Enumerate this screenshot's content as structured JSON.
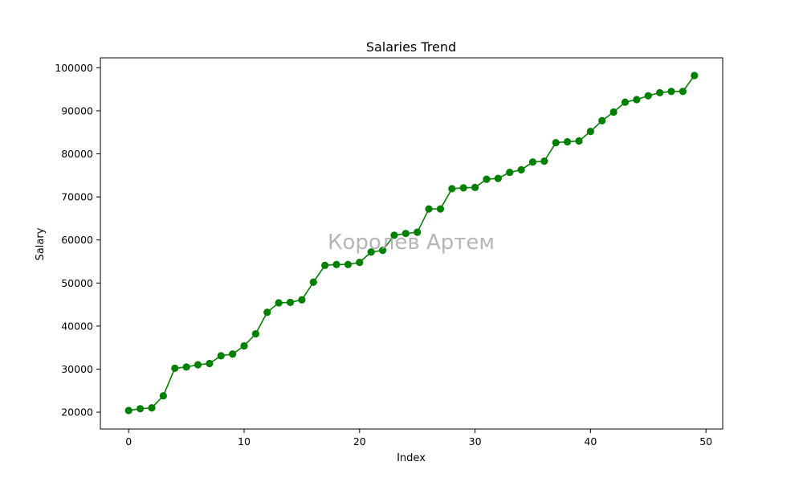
{
  "chart_data": {
    "type": "line",
    "title": "Salaries Trend",
    "xlabel": "Index",
    "ylabel": "Salary",
    "xlim": [
      -2.45,
      51.45
    ],
    "ylim": [
      16100,
      102300
    ],
    "xticks": [
      0,
      10,
      20,
      30,
      40,
      50
    ],
    "yticks": [
      20000,
      30000,
      40000,
      50000,
      60000,
      70000,
      80000,
      90000,
      100000
    ],
    "grid": false,
    "color": "#008000",
    "watermark": "Королев Артем",
    "series": [
      {
        "x": [
          0,
          1,
          2,
          3,
          4,
          5,
          6,
          7,
          8,
          9,
          10,
          11,
          12,
          13,
          14,
          15,
          16,
          17,
          18,
          19,
          20,
          21,
          22,
          23,
          24,
          25,
          26,
          27,
          28,
          29,
          30,
          31,
          32,
          33,
          34,
          35,
          36,
          37,
          38,
          39,
          40,
          41,
          42,
          43,
          44,
          45,
          46,
          47,
          48,
          49
        ],
        "y": [
          20400,
          20800,
          21000,
          23800,
          30200,
          30500,
          31000,
          31300,
          33100,
          33500,
          35400,
          38200,
          43200,
          45400,
          45500,
          46100,
          50200,
          54100,
          54300,
          54300,
          54800,
          57200,
          57600,
          61100,
          61500,
          61800,
          67200,
          67200,
          71900,
          72100,
          72200,
          74100,
          74300,
          75700,
          76300,
          78100,
          78300,
          82600,
          82800,
          83000,
          85200,
          87700,
          89700,
          92000,
          92600,
          93500,
          94200,
          94500,
          94500,
          98200
        ]
      }
    ]
  }
}
